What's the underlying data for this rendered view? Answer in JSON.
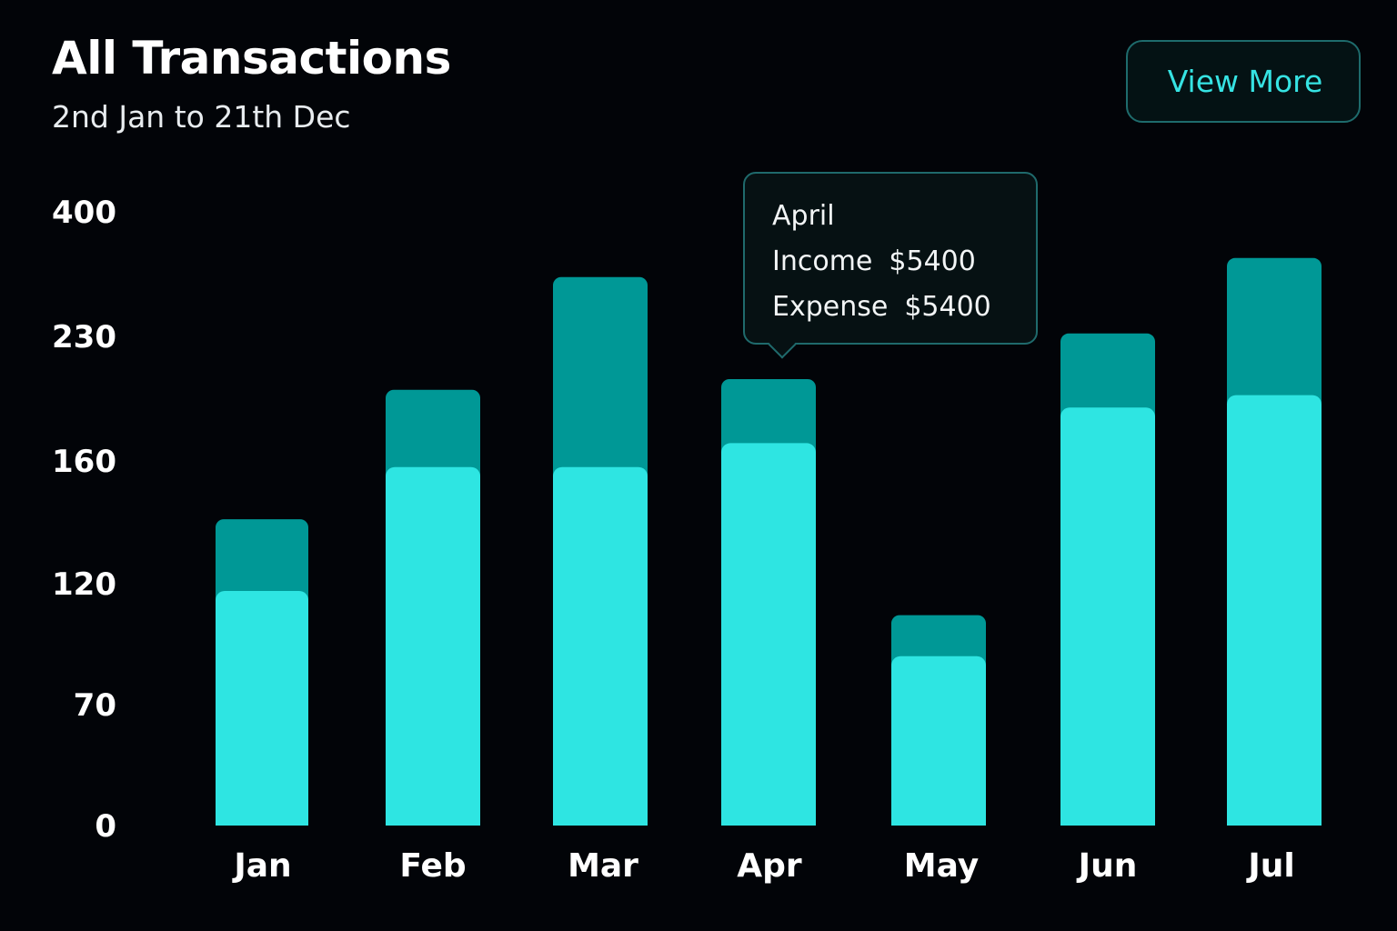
{
  "header": {
    "title": "All Transactions",
    "subtitle": "2nd Jan to 21th Dec"
  },
  "actions": {
    "view_more_label": "View More"
  },
  "tooltip": {
    "month": "April",
    "income_label": "Income",
    "income_value": "$5400",
    "expense_label": "Expense",
    "expense_value": "$5400"
  },
  "colors": {
    "background": "#020408",
    "light_segment": "#2ee5e2",
    "dark_segment": "#009896",
    "accent": "#36e3e3",
    "border": "#1e6b6c"
  },
  "chart_data": {
    "type": "bar",
    "stacked": true,
    "categories": [
      "Jan",
      "Feb",
      "Mar",
      "Apr",
      "May",
      "Jun",
      "Jul"
    ],
    "y_ticks": [
      0,
      70,
      120,
      160,
      230,
      400
    ],
    "series": [
      {
        "values": [
          117,
          158,
          158,
          170,
          90,
          190,
          197
        ]
      },
      {
        "values": [
          24,
          42,
          153,
          36,
          17,
          44,
          140
        ]
      }
    ],
    "grid": false,
    "legend": "none"
  }
}
